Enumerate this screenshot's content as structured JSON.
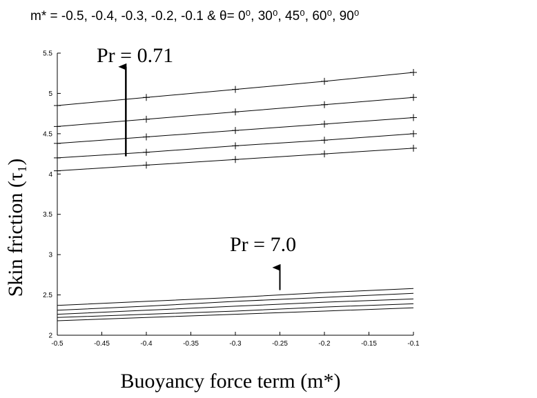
{
  "header": {
    "caption": "m* = -0.5, -0.4, -0.3, -0.2, -0.1 & θ= 0⁰, 30⁰, 45⁰, 60⁰, 90⁰"
  },
  "chart_data": {
    "type": "line",
    "xlabel": "Buoyancy force term (m*)",
    "ylabel": "Skin friction (τ₁)",
    "xlim": [
      -0.5,
      -0.1
    ],
    "ylim": [
      2,
      5.5
    ],
    "x_ticks": [
      "-0.5",
      "-0.45",
      "-0.4",
      "-0.35",
      "-0.3",
      "-0.25",
      "-0.2",
      "-0.15",
      "-0.1"
    ],
    "y_ticks": [
      "2",
      "2.5",
      "3",
      "3.5",
      "4",
      "4.5",
      "5",
      "5.5"
    ],
    "grid": false,
    "x": [
      -0.5,
      -0.4,
      -0.3,
      -0.2,
      -0.1
    ],
    "series": [
      {
        "group": "Pr = 0.71",
        "marker": "plus",
        "values": [
          4.04,
          4.11,
          4.18,
          4.25,
          4.32
        ]
      },
      {
        "group": "Pr = 0.71",
        "marker": "plus",
        "values": [
          4.2,
          4.27,
          4.35,
          4.42,
          4.5
        ]
      },
      {
        "group": "Pr = 0.71",
        "marker": "plus",
        "values": [
          4.38,
          4.46,
          4.54,
          4.62,
          4.7
        ]
      },
      {
        "group": "Pr = 0.71",
        "marker": "plus",
        "values": [
          4.59,
          4.68,
          4.77,
          4.86,
          4.95
        ]
      },
      {
        "group": "Pr = 0.71",
        "marker": "plus",
        "values": [
          4.85,
          4.95,
          5.05,
          5.15,
          5.26
        ]
      },
      {
        "group": "Pr = 7.0",
        "marker": "none",
        "values": [
          2.18,
          2.22,
          2.26,
          2.3,
          2.34
        ]
      },
      {
        "group": "Pr = 7.0",
        "marker": "none",
        "values": [
          2.22,
          2.26,
          2.3,
          2.35,
          2.39
        ]
      },
      {
        "group": "Pr = 7.0",
        "marker": "none",
        "values": [
          2.26,
          2.31,
          2.36,
          2.41,
          2.45
        ]
      },
      {
        "group": "Pr = 7.0",
        "marker": "none",
        "values": [
          2.31,
          2.36,
          2.42,
          2.47,
          2.52
        ]
      },
      {
        "group": "Pr = 7.0",
        "marker": "none",
        "values": [
          2.37,
          2.42,
          2.47,
          2.53,
          2.58
        ]
      }
    ],
    "annotations": [
      {
        "text": "Pr = 0.71",
        "arrow_x": -0.423,
        "arrow_from": 4.22,
        "arrow_to": 5.33
      },
      {
        "text": "Pr = 7.0",
        "arrow_x": -0.25,
        "arrow_from": 2.56,
        "arrow_to": 2.84
      }
    ]
  }
}
